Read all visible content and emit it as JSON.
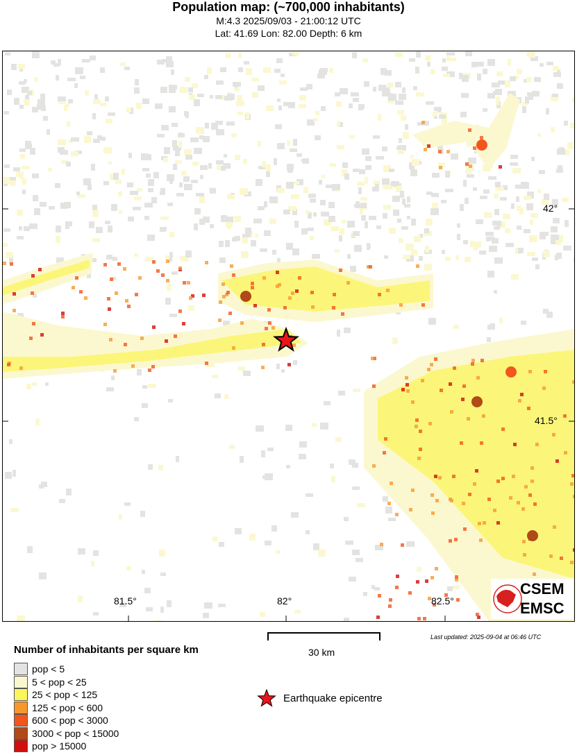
{
  "header": {
    "title": "Population map: (~700,000 inhabitants)",
    "line1": "M:4.3 2025/09/03 - 21:00:12 UTC",
    "line2": "Lat: 41.69 Lon: 82.00 Depth: 6 km"
  },
  "map": {
    "lat_ticks": [
      "42°",
      "41.5°"
    ],
    "lon_ticks": [
      "81.5°",
      "82°",
      "82.5°"
    ],
    "epicentre": {
      "lat": 41.69,
      "lon": 82.0
    },
    "logo": {
      "top": "CSEM",
      "bottom": "EMSC"
    }
  },
  "scale_bar": {
    "label": "30 km"
  },
  "last_updated": "Last updated: 2025-09-04 at 06:46 UTC",
  "legend": {
    "title": "Number of inhabitants per square km",
    "items": [
      {
        "label": "pop < 5",
        "color": "#e3e3e1"
      },
      {
        "label": "5 < pop < 25",
        "color": "#fbf8d0"
      },
      {
        "label": "25 < pop < 125",
        "color": "#fbf65c"
      },
      {
        "label": "125 < pop < 600",
        "color": "#f7982f"
      },
      {
        "label": "600 < pop < 3000",
        "color": "#f2561d"
      },
      {
        "label": "3000 < pop < 15000",
        "color": "#b04a16"
      },
      {
        "label": "pop > 15000",
        "color": "#d10f0f"
      }
    ],
    "epicentre_label": "Earthquake epicentre"
  }
}
